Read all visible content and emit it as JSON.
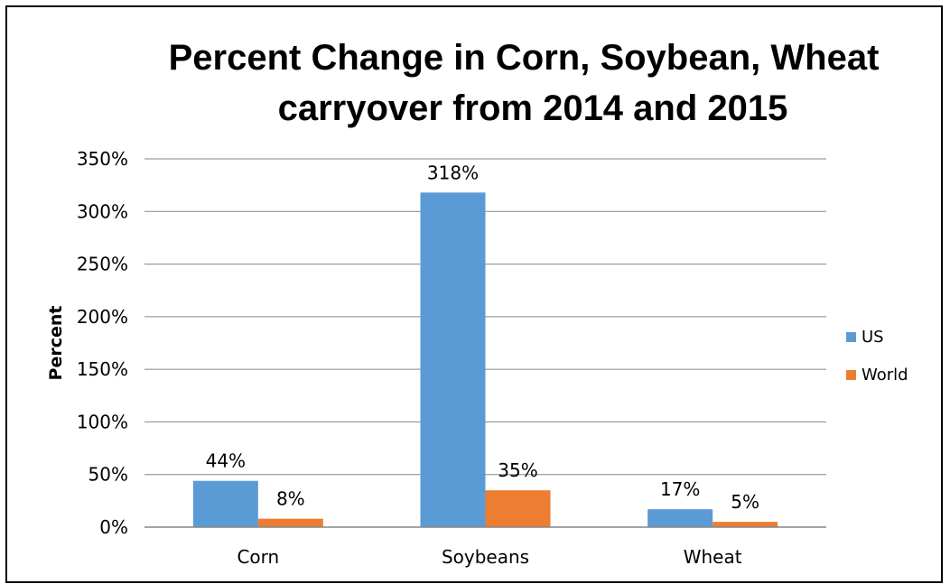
{
  "chart_data": {
    "type": "bar",
    "title_line1": "Percent Change in Corn, Soybean, Wheat",
    "title_line2": "carryover from 2014 and 2015",
    "ylabel": "Percent",
    "xlabel": "",
    "categories": [
      "Corn",
      "Soybeans",
      "Wheat"
    ],
    "series": [
      {
        "name": "US",
        "values": [
          44,
          318,
          17
        ],
        "labels": [
          "44%",
          "318%",
          "17%"
        ],
        "color": "#5B9BD5"
      },
      {
        "name": "World",
        "values": [
          8,
          35,
          5
        ],
        "labels": [
          "8%",
          "35%",
          "5%"
        ],
        "color": "#ED7D31"
      }
    ],
    "ylim": [
      0,
      350
    ],
    "yticks": [
      0,
      50,
      100,
      150,
      200,
      250,
      300,
      350
    ],
    "ytick_labels": [
      "0%",
      "50%",
      "100%",
      "150%",
      "200%",
      "250%",
      "300%",
      "350%"
    ],
    "grid": true,
    "legend_position": "right"
  }
}
